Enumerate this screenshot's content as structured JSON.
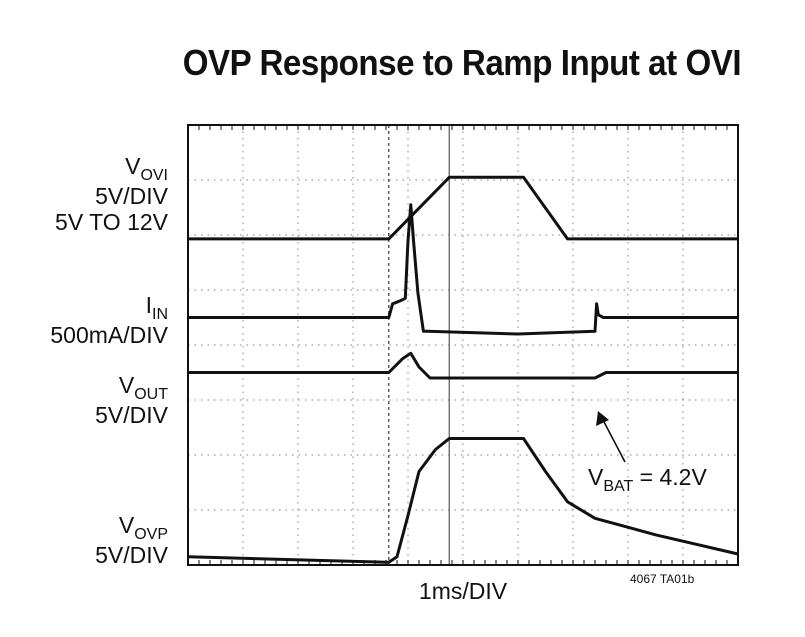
{
  "chart_data": {
    "type": "line",
    "title": "OVP Response to Ramp Input at OVI",
    "xlabel": "1ms/DIV",
    "grid": true,
    "divisions": {
      "x": 10,
      "y": 8
    },
    "series": [
      {
        "name": "V_OVI",
        "label_main": "V",
        "label_sub": "OVI",
        "extra_lines": [
          "5V/DIV",
          "5V TO 12V"
        ],
        "x": [
          0,
          3.65,
          4.75,
          5.1,
          5.9,
          6.1,
          6.9,
          10
        ],
        "y": [
          1.93,
          1.93,
          3.05,
          3.05,
          3.05,
          3.05,
          1.93,
          1.93
        ]
      },
      {
        "name": "I_IN",
        "label_main": "I",
        "label_sub": "IN",
        "extra_lines": [
          "500mA/DIV"
        ],
        "x": [
          0,
          3.65,
          3.72,
          3.85,
          3.95,
          4.0,
          4.05,
          4.1,
          4.18,
          4.28,
          4.35,
          6.0,
          7.4,
          7.43,
          7.46,
          7.55,
          10
        ],
        "y": [
          0.5,
          0.5,
          0.75,
          0.8,
          0.85,
          1.9,
          2.55,
          1.9,
          0.95,
          0.25,
          0.25,
          0.2,
          0.25,
          0.75,
          0.55,
          0.5,
          0.5
        ]
      },
      {
        "name": "V_OUT",
        "label_main": "V",
        "label_sub": "OUT",
        "extra_lines": [
          "5V/DIV"
        ],
        "x": [
          0,
          3.65,
          3.9,
          4.05,
          4.2,
          4.4,
          7.4,
          7.6,
          10
        ],
        "y": [
          -0.5,
          -0.5,
          -0.25,
          -0.15,
          -0.4,
          -0.6,
          -0.6,
          -0.5,
          -0.5
        ]
      },
      {
        "name": "V_OVP",
        "label_main": "V",
        "label_sub": "OVP",
        "extra_lines": [
          "5V/DIV"
        ],
        "x": [
          0,
          3.65,
          3.8,
          4.0,
          4.2,
          4.5,
          4.75,
          5.1,
          5.9,
          6.1,
          6.5,
          6.9,
          7.4,
          8.5,
          10
        ],
        "y": [
          -3.85,
          -3.95,
          -3.85,
          -3.1,
          -2.3,
          -1.9,
          -1.7,
          -1.7,
          -1.7,
          -1.7,
          -2.3,
          -2.85,
          -3.15,
          -3.45,
          -3.8
        ]
      }
    ],
    "annotation": {
      "main": "V",
      "sub": "BAT",
      "rest": " = 4.2V"
    },
    "footnote": "4067 TA01b",
    "cursors_x": [
      3.65,
      4.75
    ]
  }
}
